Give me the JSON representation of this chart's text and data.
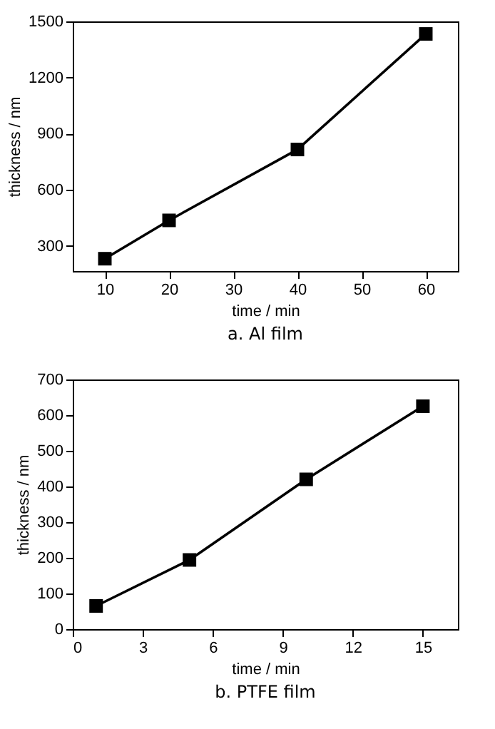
{
  "chart_data": [
    {
      "type": "line",
      "title": "a.  Al film",
      "xlabel": "time / min",
      "ylabel": "thickness / nm",
      "x": [
        10,
        20,
        40,
        60
      ],
      "series": [
        {
          "color": "#000000",
          "values": [
            231,
            436,
            815,
            1433
          ]
        }
      ],
      "xlim": [
        5,
        65
      ],
      "xticks": [
        10,
        20,
        30,
        40,
        50,
        60
      ],
      "ylim": [
        165,
        1500
      ],
      "yticks": [
        300,
        600,
        900,
        1200,
        1500
      ],
      "grid": false,
      "marker": "square",
      "line_style": "solid"
    },
    {
      "type": "line",
      "title": "b.  PTFE film",
      "xlabel": "time / min",
      "ylabel": "thickness / nm",
      "x": [
        1,
        5,
        10,
        15
      ],
      "series": [
        {
          "color": "#000000",
          "values": [
            65,
            194,
            420,
            625
          ]
        }
      ],
      "xlim": [
        0,
        16.5
      ],
      "xticks": [
        0,
        3,
        6,
        9,
        12,
        15
      ],
      "ylim": [
        0,
        700
      ],
      "yticks": [
        0,
        100,
        200,
        300,
        400,
        500,
        600,
        700
      ],
      "grid": false,
      "marker": "square",
      "line_style": "solid"
    }
  ]
}
